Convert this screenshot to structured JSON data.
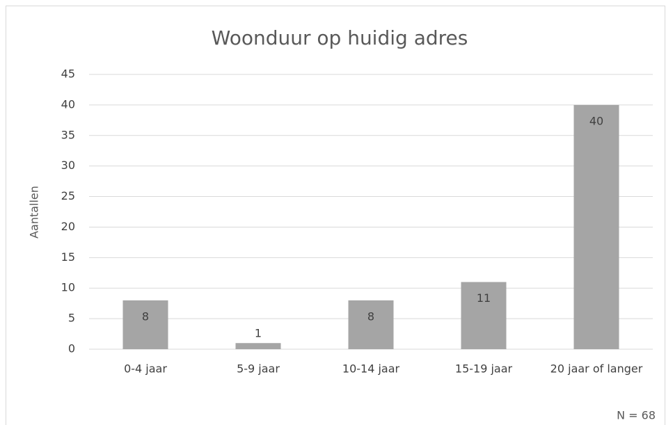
{
  "chart_data": {
    "type": "bar",
    "title": "Woonduur op huidig adres",
    "y_label": "Aantallen",
    "categories": [
      "0-4 jaar",
      "5-9 jaar",
      "10-14 jaar",
      "15-19 jaar",
      "20 jaar of langer"
    ],
    "values": [
      8,
      1,
      8,
      11,
      40
    ],
    "color": "#a5a5a5",
    "ylim": [
      0,
      45
    ],
    "yticks": [
      0,
      5,
      10,
      15,
      20,
      25,
      30,
      35,
      40,
      45
    ],
    "grid": true,
    "annotation": "N = 68"
  }
}
